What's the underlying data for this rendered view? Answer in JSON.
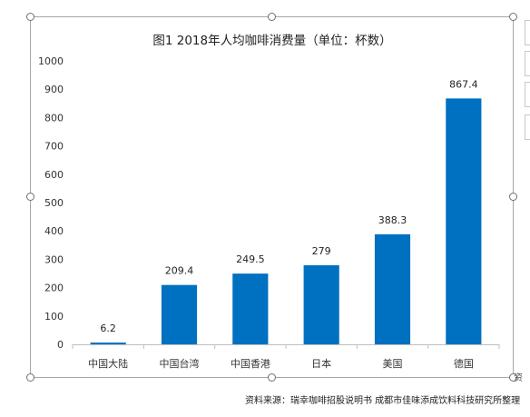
{
  "chart_data": {
    "type": "bar",
    "title": "图1 2018年人均咖啡消费量（单位：杯数）",
    "categories": [
      "中国大陆",
      "中国台湾",
      "中国香港",
      "日本",
      "美国",
      "德国"
    ],
    "values": [
      6.2,
      209.4,
      249.5,
      279,
      388.3,
      867.4
    ],
    "data_labels": [
      "6.2",
      "209.4",
      "249.5",
      "279",
      "388.3",
      "867.4"
    ],
    "ylim": [
      0,
      1000
    ],
    "yticks": [
      0,
      100,
      200,
      300,
      400,
      500,
      600,
      700,
      800,
      900,
      1000
    ],
    "xlabel": "",
    "ylabel": "",
    "grid": false,
    "legend": "none",
    "bar_color": "#0070c0"
  },
  "source_note": "资料来源：瑞幸咖啡招股说明书  成都市佳味添成饮料科技研究所整理",
  "corner_mark": "资"
}
